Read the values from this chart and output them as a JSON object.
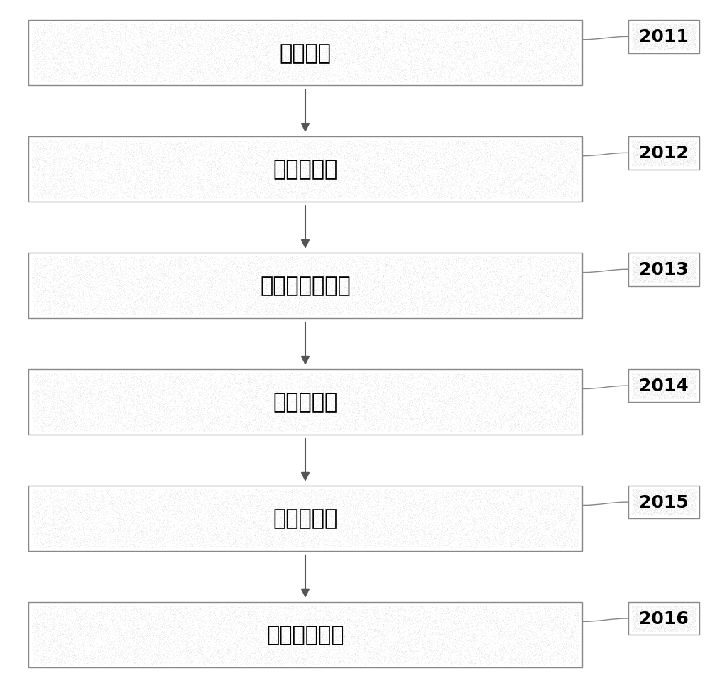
{
  "box_labels": [
    "数据采集",
    "存入数据库",
    "交通信息数学化",
    "指标归一化",
    "指标分数化",
    "组建评分矩阵"
  ],
  "tags": [
    "2011",
    "2012",
    "2013",
    "2014",
    "2015",
    "2016"
  ],
  "box_fill": "#d8d8d8",
  "box_edge": "#888888",
  "tag_fill": "#e8e8e8",
  "tag_edge": "#999999",
  "bg_color": "#ffffff",
  "text_fontsize": 22,
  "tag_fontsize": 18,
  "arrow_color": "#555555",
  "figure_width": 10.0,
  "figure_height": 9.7
}
